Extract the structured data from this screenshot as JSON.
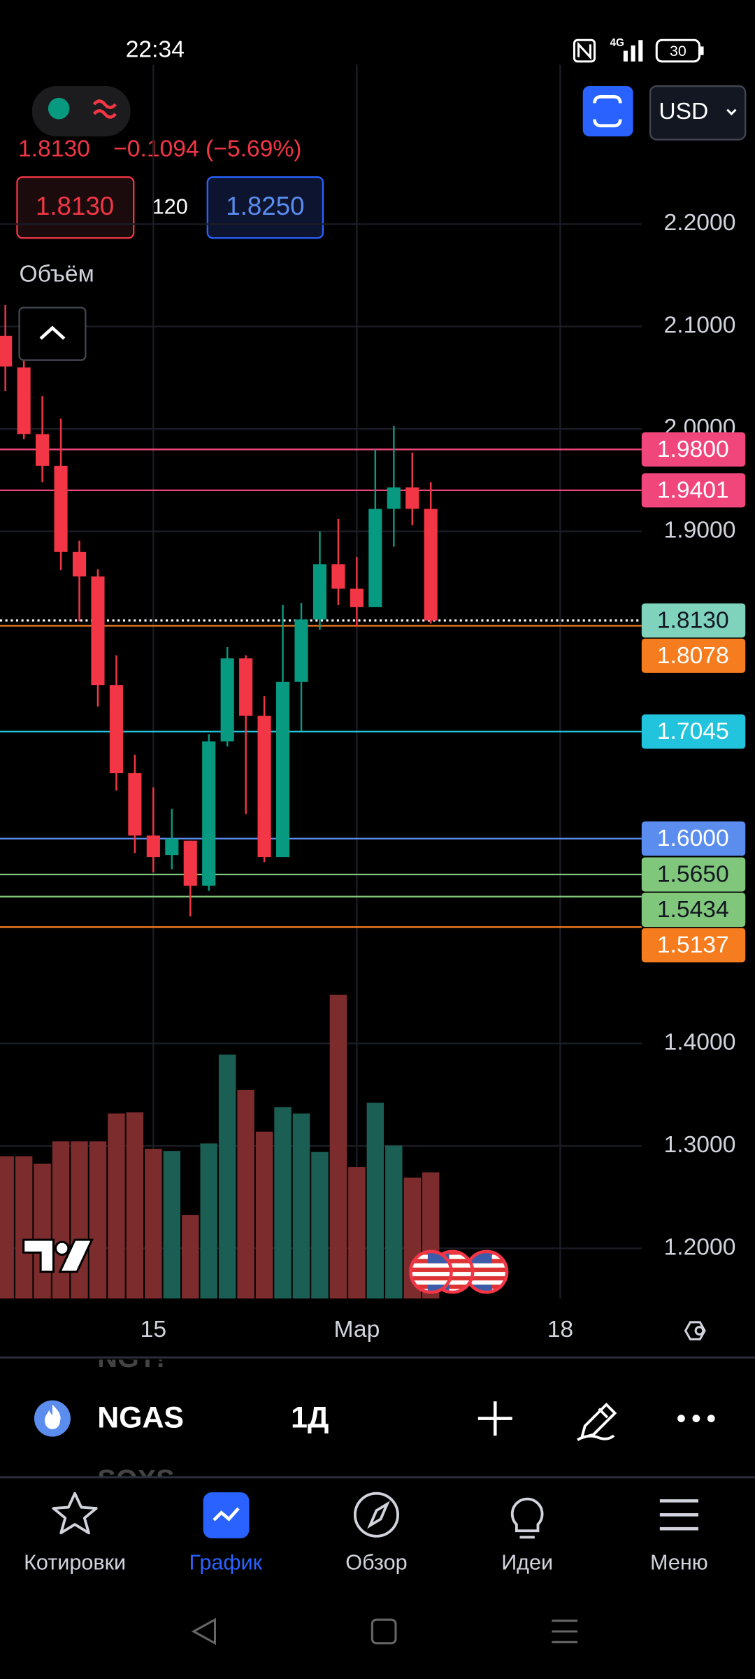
{
  "status_bar": {
    "time": "22:34",
    "network": "4G",
    "battery": "30"
  },
  "header": {
    "currency": "USD",
    "price": "1.8130",
    "change": "−0.1094 (−5.69%)",
    "sell": "1.8130",
    "spread": "120",
    "buy": "1.8250",
    "volume_label": "Объём"
  },
  "chart_data": {
    "type": "candlestick",
    "x": [
      0,
      1,
      2,
      3,
      4,
      5,
      6,
      7,
      8,
      9,
      10,
      11,
      12,
      13,
      14,
      15,
      16,
      17,
      18,
      19,
      20,
      21,
      22,
      23
    ],
    "open": [
      2.091,
      2.06,
      1.995,
      1.964,
      1.88,
      1.856,
      1.75,
      1.664,
      1.603,
      1.584,
      1.598,
      1.554,
      1.695,
      1.776,
      1.72,
      1.582,
      1.753,
      1.814,
      1.868,
      1.844,
      1.826,
      1.922,
      1.943,
      1.922
    ],
    "high": [
      2.121,
      2.067,
      2.032,
      2.01,
      1.891,
      1.863,
      1.779,
      1.682,
      1.65,
      1.629,
      1.598,
      1.702,
      1.787,
      1.779,
      1.739,
      1.828,
      1.83,
      1.9,
      1.912,
      1.875,
      1.98,
      2.003,
      1.977,
      1.948
    ],
    "low": [
      2.037,
      1.99,
      1.948,
      1.862,
      1.812,
      1.729,
      1.647,
      1.586,
      1.567,
      1.57,
      1.524,
      1.549,
      1.69,
      1.624,
      1.577,
      1.582,
      1.705,
      1.804,
      1.828,
      1.807,
      1.826,
      1.885,
      1.906,
      1.81
    ],
    "close": [
      2.061,
      1.995,
      1.964,
      1.88,
      1.856,
      1.75,
      1.664,
      1.603,
      1.582,
      1.6,
      1.554,
      1.695,
      1.776,
      1.72,
      1.582,
      1.753,
      1.814,
      1.868,
      1.844,
      1.826,
      1.922,
      1.943,
      1.922,
      1.813
    ],
    "volume": [
      133,
      133,
      126,
      147,
      147,
      147,
      173,
      174,
      140,
      138,
      78,
      145,
      228,
      195,
      156,
      179,
      173,
      137,
      284,
      123,
      183,
      143,
      113,
      118
    ],
    "volume_lim": [
      0,
      1143
    ],
    "up_color": "#089981",
    "down_color": "#f23645",
    "volume_up_color": "#1b5e54",
    "volume_down_color": "#7c2c2d",
    "xlim": [
      -0.29,
      34.4
    ],
    "ylim": [
      1.1509,
      2.3452
    ],
    "xticks": [
      {
        "value": 8,
        "label": "15"
      },
      {
        "value": 19,
        "label": "Мар"
      },
      {
        "value": 30,
        "label": "18"
      }
    ],
    "yticks": [
      {
        "value": 2.2,
        "label": "2.2000"
      },
      {
        "value": 2.1,
        "label": "2.1000"
      },
      {
        "value": 2.0,
        "label": "2.0000"
      },
      {
        "value": 1.9,
        "label": "1.9000"
      },
      {
        "value": 1.4,
        "label": "1.4000"
      },
      {
        "value": 1.3,
        "label": "1.3000"
      },
      {
        "value": 1.2,
        "label": "1.2000"
      }
    ],
    "grid": true,
    "levels": [
      {
        "value": 1.98,
        "label": "1.9800",
        "color": "#f0467c",
        "text_color": "#ffffff"
      },
      {
        "value": 1.9401,
        "label": "1.9401",
        "color": "#f0467c",
        "text_color": "#ffffff"
      },
      {
        "value": 1.813,
        "label": "1.8130",
        "color": "#7fd3bd",
        "text_color": "#131722",
        "style": "dotted"
      },
      {
        "value": 1.8078,
        "label": "1.8078",
        "color": "#f57c1f",
        "text_color": "#ffffff"
      },
      {
        "value": 1.7045,
        "label": "1.7045",
        "color": "#22c3dd",
        "text_color": "#ffffff"
      },
      {
        "value": 1.6,
        "label": "1.6000",
        "color": "#5b8def",
        "text_color": "#ffffff"
      },
      {
        "value": 1.565,
        "label": "1.5650",
        "color": "#81c77b",
        "text_color": "#131722"
      },
      {
        "value": 1.5434,
        "label": "1.5434",
        "color": "#81c77b",
        "text_color": "#131722"
      },
      {
        "value": 1.5137,
        "label": "1.5137",
        "color": "#f57c1f",
        "text_color": "#ffffff"
      }
    ]
  },
  "symbol_bar": {
    "symbol": "NGAS",
    "interval": "1Д",
    "prev_symbol": "NGT!",
    "next_symbol": "SOXS"
  },
  "nav": {
    "items": [
      "Котировки",
      "График",
      "Обзор",
      "Идеи",
      "Меню"
    ],
    "active": 1
  }
}
